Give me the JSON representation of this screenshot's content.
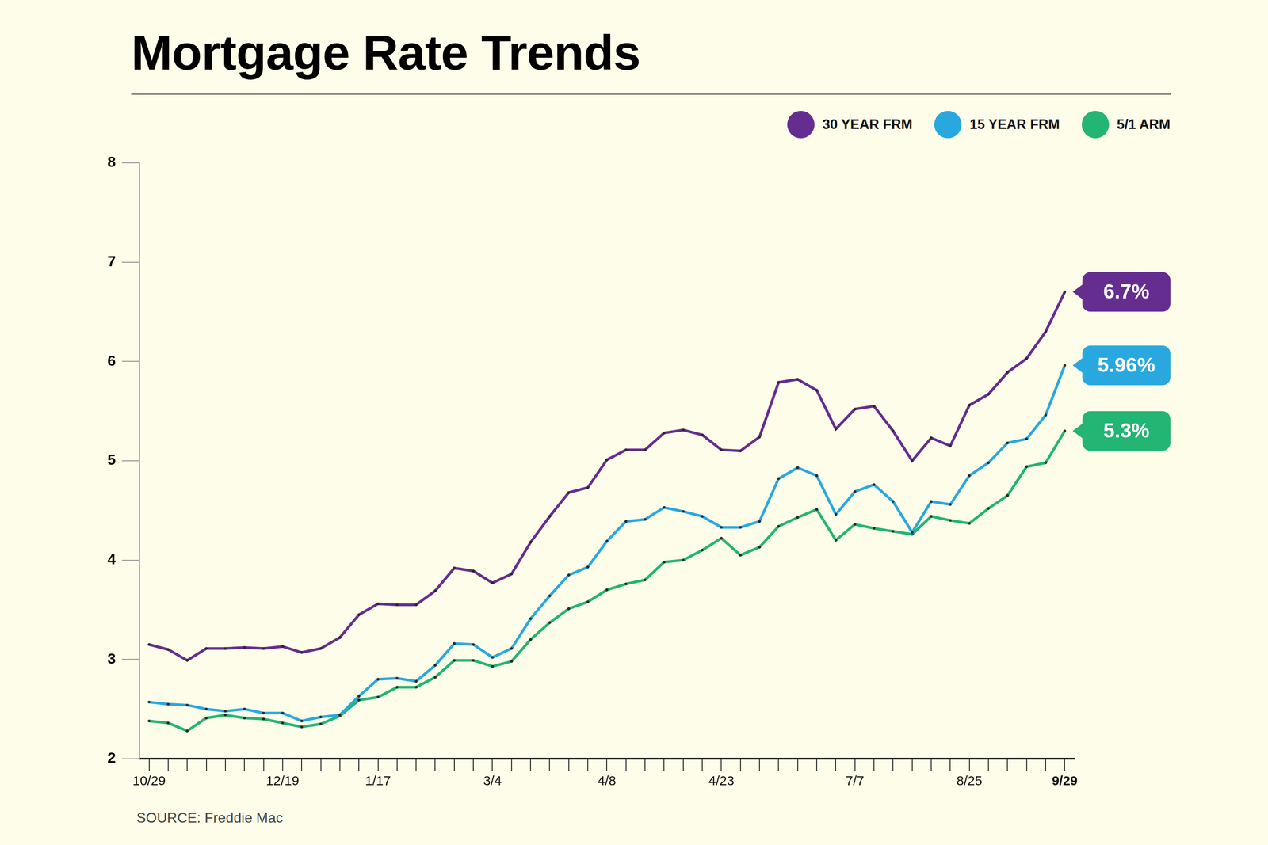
{
  "chart_data": {
    "type": "line",
    "title": "Mortgage Rate Trends",
    "source": "SOURCE: Freddie Mac",
    "categories": [
      "10/29",
      null,
      null,
      null,
      null,
      null,
      null,
      "12/19",
      null,
      null,
      null,
      null,
      "1/17",
      null,
      null,
      null,
      null,
      null,
      "3/4",
      null,
      null,
      null,
      null,
      null,
      "4/8",
      null,
      null,
      null,
      null,
      null,
      "4/23",
      null,
      null,
      null,
      null,
      null,
      null,
      "7/7",
      null,
      null,
      null,
      null,
      null,
      "8/25",
      null,
      null,
      null,
      null,
      "9/29"
    ],
    "series": [
      {
        "name": "30 YEAR FRM",
        "color": "#662d91",
        "values": [
          3.15,
          3.1,
          2.99,
          3.11,
          3.11,
          3.12,
          3.11,
          3.13,
          3.07,
          3.11,
          3.22,
          3.45,
          3.56,
          3.55,
          3.55,
          3.69,
          3.92,
          3.89,
          3.77,
          3.86,
          4.18,
          4.44,
          4.68,
          4.73,
          5.01,
          5.11,
          5.11,
          5.28,
          5.31,
          5.26,
          5.11,
          5.1,
          5.24,
          5.79,
          5.82,
          5.71,
          5.32,
          5.52,
          5.55,
          5.3,
          5.0,
          5.23,
          5.15,
          5.56,
          5.67,
          5.89,
          6.03,
          6.3,
          6.7
        ],
        "value_labels": [
          null,
          null,
          null,
          null,
          null,
          null,
          null,
          null,
          null,
          null,
          null,
          null,
          null,
          null,
          null,
          null,
          null,
          null,
          null,
          null,
          null,
          null,
          null,
          null,
          null,
          null,
          null,
          null,
          null,
          null,
          null,
          null,
          null,
          null,
          null,
          null,
          null,
          null,
          null,
          null,
          null,
          null,
          null,
          null,
          null,
          null,
          null,
          null,
          "6.7%"
        ]
      },
      {
        "name": "15 YEAR FRM",
        "color": "#29a8e0",
        "values": [
          2.57,
          2.55,
          2.54,
          2.5,
          2.48,
          2.5,
          2.46,
          2.46,
          2.38,
          2.42,
          2.44,
          2.63,
          2.8,
          2.81,
          2.78,
          2.94,
          3.16,
          3.15,
          3.02,
          3.11,
          3.41,
          3.64,
          3.85,
          3.93,
          4.19,
          4.39,
          4.41,
          4.53,
          4.49,
          4.44,
          4.33,
          4.33,
          4.39,
          4.82,
          4.93,
          4.85,
          4.46,
          4.69,
          4.76,
          4.59,
          4.28,
          4.59,
          4.56,
          4.85,
          4.98,
          5.18,
          5.22,
          5.46,
          5.96
        ],
        "value_labels": [
          null,
          null,
          null,
          null,
          null,
          null,
          null,
          null,
          null,
          null,
          null,
          null,
          null,
          null,
          null,
          null,
          null,
          null,
          null,
          null,
          null,
          null,
          null,
          null,
          null,
          null,
          null,
          null,
          null,
          null,
          null,
          null,
          null,
          null,
          null,
          null,
          null,
          null,
          null,
          null,
          null,
          null,
          null,
          null,
          null,
          null,
          null,
          null,
          "5.96%"
        ]
      },
      {
        "name": "5/1 ARM",
        "color": "#22b573",
        "values": [
          2.38,
          2.36,
          2.28,
          2.41,
          2.44,
          2.41,
          2.4,
          2.36,
          2.32,
          2.35,
          2.43,
          2.59,
          2.62,
          2.72,
          2.72,
          2.82,
          2.99,
          2.99,
          2.93,
          2.98,
          3.2,
          3.37,
          3.51,
          3.58,
          3.7,
          3.76,
          3.8,
          3.98,
          4.0,
          4.1,
          4.22,
          4.05,
          4.13,
          4.34,
          4.43,
          4.51,
          4.2,
          4.36,
          4.32,
          4.29,
          4.26,
          4.44,
          4.4,
          4.37,
          4.52,
          4.65,
          4.94,
          4.98,
          5.3
        ],
        "value_labels": [
          null,
          null,
          null,
          null,
          null,
          null,
          null,
          null,
          null,
          null,
          null,
          null,
          null,
          null,
          null,
          null,
          null,
          null,
          null,
          null,
          null,
          null,
          null,
          null,
          null,
          null,
          null,
          null,
          null,
          null,
          null,
          null,
          null,
          null,
          null,
          null,
          null,
          null,
          null,
          null,
          null,
          null,
          null,
          null,
          null,
          null,
          null,
          null,
          "5.3%"
        ]
      }
    ],
    "ylim": [
      2,
      8
    ],
    "yticks": [
      2,
      3,
      4,
      5,
      6,
      7,
      8
    ],
    "grid": false,
    "legend": "top-right",
    "data_labels": true,
    "marker": "circle"
  }
}
